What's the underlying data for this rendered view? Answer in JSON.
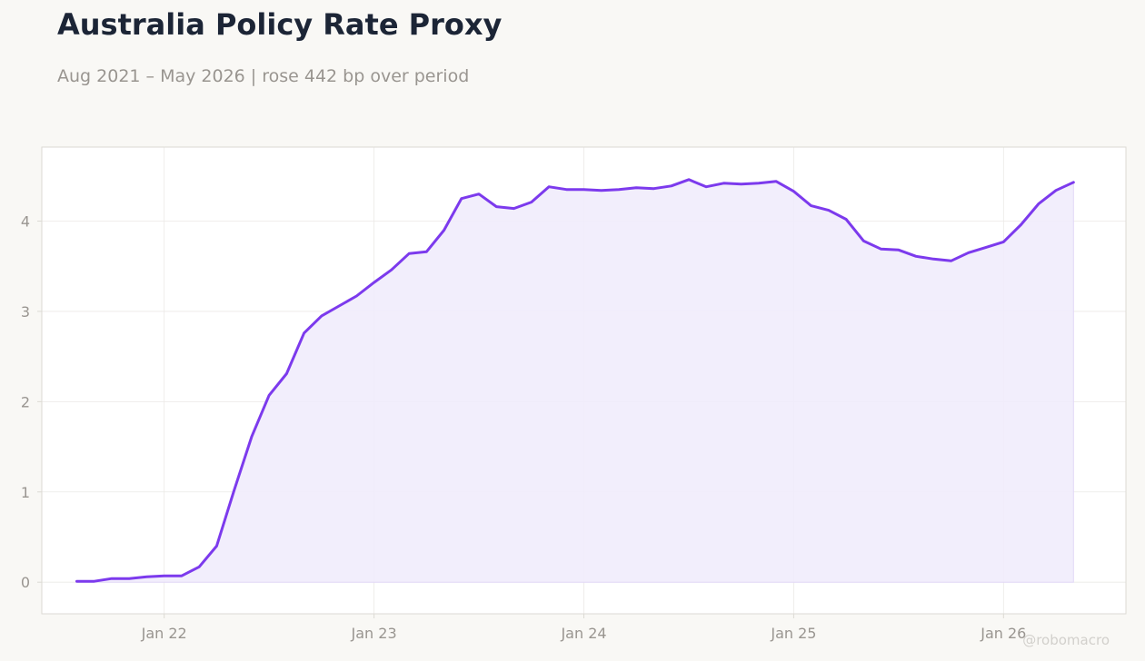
{
  "header": {
    "title": "Australia Policy Rate Proxy",
    "subtitle": "Aug 2021 – May 2026 | rose 442 bp over period"
  },
  "watermark": "@robomacro",
  "colors": {
    "line": "#7c3aed",
    "fill": "#f1ecfc",
    "plot_background": "#ffffff",
    "page_background": "#f9f8f5",
    "grid": "#ebe9e6",
    "frame": "#dcdad4"
  },
  "chart_data": {
    "type": "area",
    "title": "Australia Policy Rate Proxy",
    "subtitle": "Aug 2021 – May 2026 | rose 442 bp over period",
    "xlabel": "",
    "ylabel": "",
    "x_tick_labels": [
      "Jan 22",
      "Jan 23",
      "Jan 24",
      "Jan 25",
      "Jan 26"
    ],
    "x_tick_dates": [
      "2022-01",
      "2023-01",
      "2024-01",
      "2025-01",
      "2026-01"
    ],
    "y_ticks": [
      0,
      1,
      2,
      3,
      4
    ],
    "xlim": [
      "2021-06",
      "2026-08"
    ],
    "ylim": [
      -0.35,
      4.82
    ],
    "grid": true,
    "legend": "none",
    "series": [
      {
        "x": [
          "2021-08",
          "2021-09",
          "2021-10",
          "2021-11",
          "2021-12",
          "2022-01",
          "2022-02",
          "2022-03",
          "2022-04",
          "2022-05",
          "2022-06",
          "2022-07",
          "2022-08",
          "2022-09",
          "2022-10",
          "2022-11",
          "2022-12",
          "2023-01",
          "2023-02",
          "2023-03",
          "2023-04",
          "2023-05",
          "2023-06",
          "2023-07",
          "2023-08",
          "2023-09",
          "2023-10",
          "2023-11",
          "2023-12",
          "2024-01",
          "2024-02",
          "2024-03",
          "2024-04",
          "2024-05",
          "2024-06",
          "2024-07",
          "2024-08",
          "2024-09",
          "2024-10",
          "2024-11",
          "2024-12",
          "2025-01",
          "2025-02",
          "2025-03",
          "2025-04",
          "2025-05",
          "2025-06",
          "2025-07",
          "2025-08",
          "2025-09",
          "2025-10",
          "2025-11",
          "2025-12",
          "2026-01",
          "2026-02",
          "2026-03",
          "2026-04",
          "2026-05"
        ],
        "values": [
          0.01,
          0.01,
          0.04,
          0.04,
          0.06,
          0.07,
          0.07,
          0.17,
          0.4,
          1.02,
          1.61,
          2.07,
          2.31,
          2.76,
          2.95,
          3.06,
          3.17,
          3.32,
          3.46,
          3.64,
          3.66,
          3.9,
          4.25,
          4.3,
          4.16,
          4.14,
          4.21,
          4.38,
          4.35,
          4.35,
          4.34,
          4.35,
          4.37,
          4.36,
          4.39,
          4.46,
          4.38,
          4.42,
          4.41,
          4.42,
          4.44,
          4.33,
          4.17,
          4.12,
          4.02,
          3.78,
          3.69,
          3.68,
          3.61,
          3.58,
          3.56,
          3.65,
          3.71,
          3.77,
          3.96,
          4.19,
          4.34,
          4.43
        ]
      }
    ]
  }
}
